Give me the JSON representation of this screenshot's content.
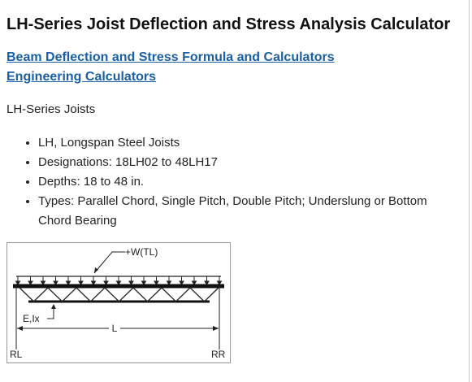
{
  "header": {
    "title": "LH-Series Joist Deflection and Stress Analysis Calculator"
  },
  "links": [
    "Beam Deflection and Stress Formula and Calculators",
    "Engineering Calculators"
  ],
  "intro": "LH-Series Joists",
  "bullets": [
    "LH, Longspan Steel Joists",
    "Designations: 18LH02 to 48LH17",
    "Depths: 18 to 48 in.",
    "Types: Parallel Chord, Single Pitch, Double Pitch; Underslung or Bottom Chord Bearing"
  ],
  "diagram": {
    "load": "+W(TL)",
    "stiffness": "E,Ix",
    "length": "L",
    "left_reaction": "RL",
    "right_reaction": "RR"
  }
}
